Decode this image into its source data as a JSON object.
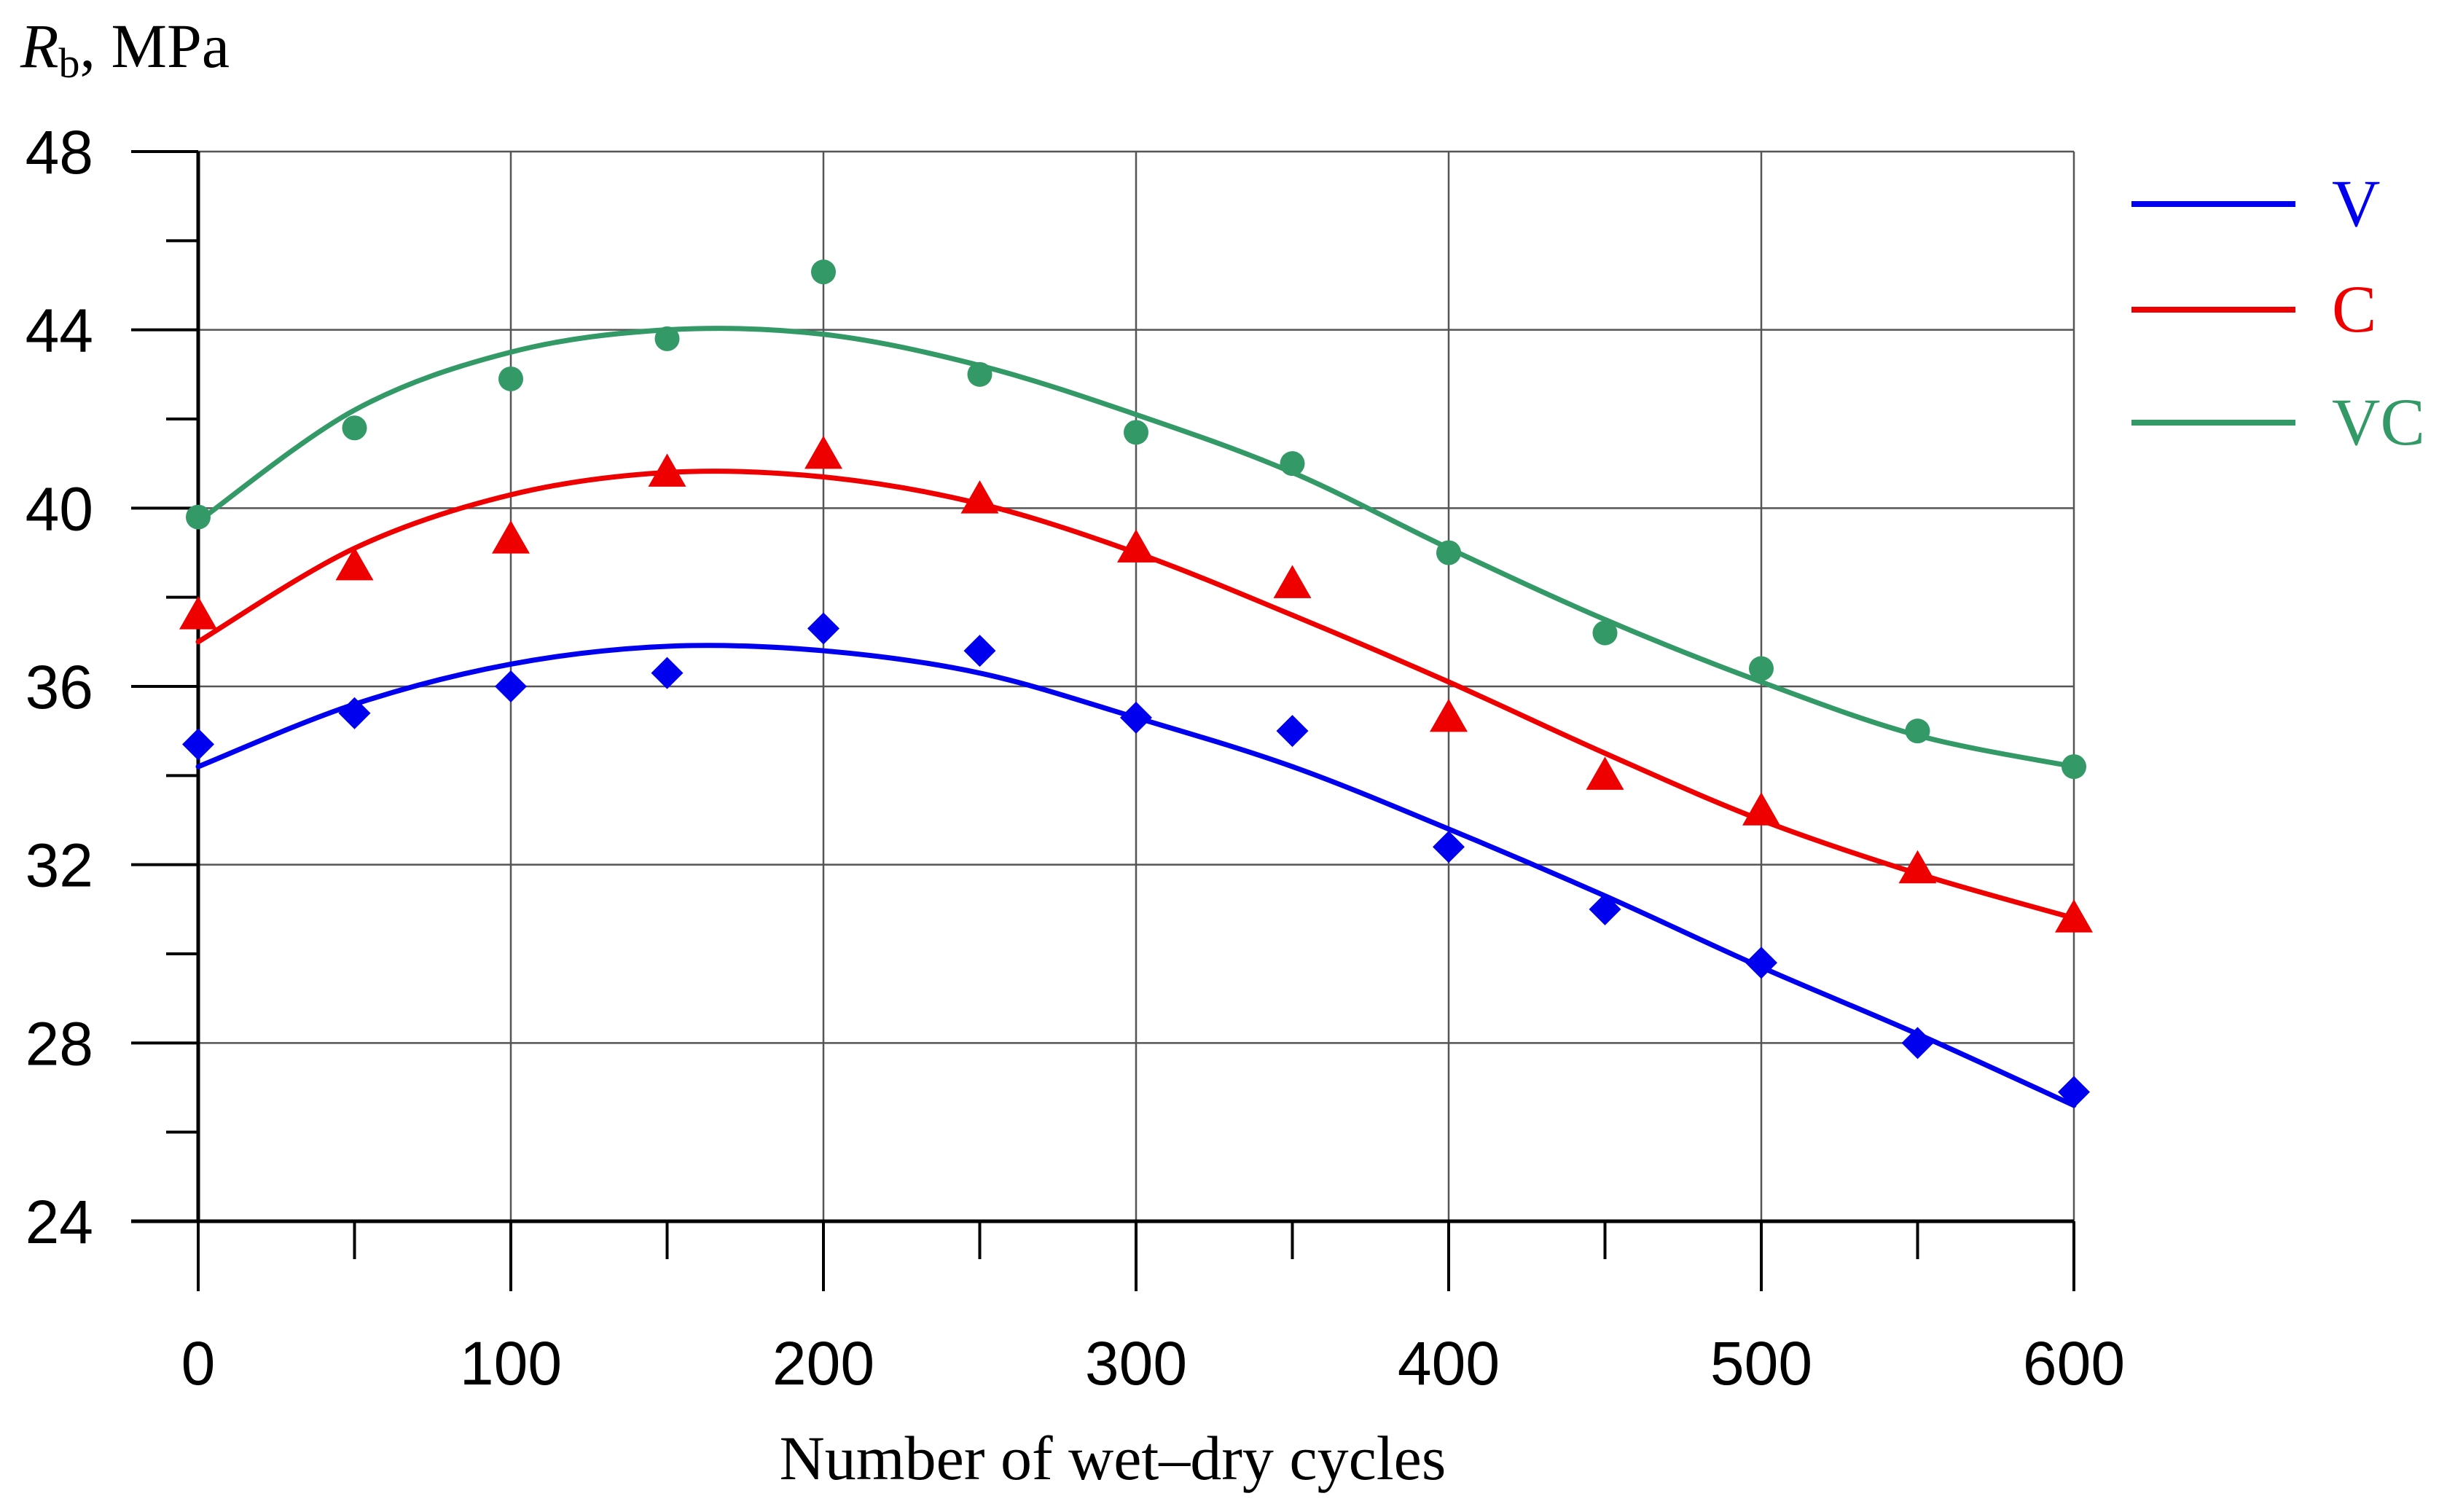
{
  "chart_data": {
    "type": "scatter",
    "title": "",
    "ylabel_symbol": "R",
    "ylabel_subscript": "b",
    "ylabel_unit": ", MPa",
    "xlabel": "Number of wet–dry cycles",
    "x": [
      0,
      50,
      100,
      150,
      200,
      250,
      300,
      350,
      400,
      450,
      500,
      550,
      600
    ],
    "xlim": [
      0,
      600
    ],
    "ylim": [
      24,
      48
    ],
    "x_ticks": [
      0,
      100,
      200,
      300,
      400,
      500,
      600
    ],
    "x_tick_labels": [
      "0",
      "100",
      "200",
      "300",
      "400",
      "500",
      "600"
    ],
    "x_minor_ticks": [
      50,
      150,
      250,
      350,
      450,
      550
    ],
    "y_ticks": [
      24,
      28,
      32,
      36,
      40,
      44,
      48
    ],
    "y_tick_labels": [
      "24",
      "28",
      "32",
      "36",
      "40",
      "44",
      "48"
    ],
    "y_minor_ticks": [
      26,
      30,
      34,
      38,
      42,
      46
    ],
    "grid": true,
    "legend_position": "top-right",
    "series": [
      {
        "name": "V",
        "color": "#0000ee",
        "marker": "diamond",
        "values": [
          34.7,
          35.4,
          36.0,
          36.3,
          37.3,
          36.8,
          35.3,
          35.0,
          32.4,
          31.0,
          29.8,
          28.0,
          26.9
        ],
        "fit": [
          34.2,
          35.6,
          36.5,
          36.9,
          36.8,
          36.3,
          35.3,
          34.2,
          32.8,
          31.3,
          29.7,
          28.2,
          26.6
        ]
      },
      {
        "name": "C",
        "color": "#ee0000",
        "marker": "triangle",
        "values": [
          37.6,
          38.7,
          39.3,
          40.8,
          41.2,
          40.2,
          39.1,
          38.3,
          35.3,
          34.0,
          33.2,
          31.9,
          30.8
        ],
        "fit": [
          37.0,
          39.1,
          40.3,
          40.8,
          40.7,
          40.1,
          39.0,
          37.6,
          36.1,
          34.5,
          33.0,
          31.8,
          30.8
        ]
      },
      {
        "name": "VC",
        "color": "#339966",
        "marker": "circle",
        "values": [
          39.8,
          41.8,
          42.9,
          43.8,
          45.3,
          43.0,
          41.7,
          41.0,
          39.0,
          37.2,
          36.4,
          35.0,
          34.2
        ],
        "fit": [
          39.7,
          42.2,
          43.5,
          44.0,
          43.9,
          43.2,
          42.1,
          40.8,
          39.1,
          37.5,
          36.1,
          34.9,
          34.2
        ]
      }
    ]
  }
}
